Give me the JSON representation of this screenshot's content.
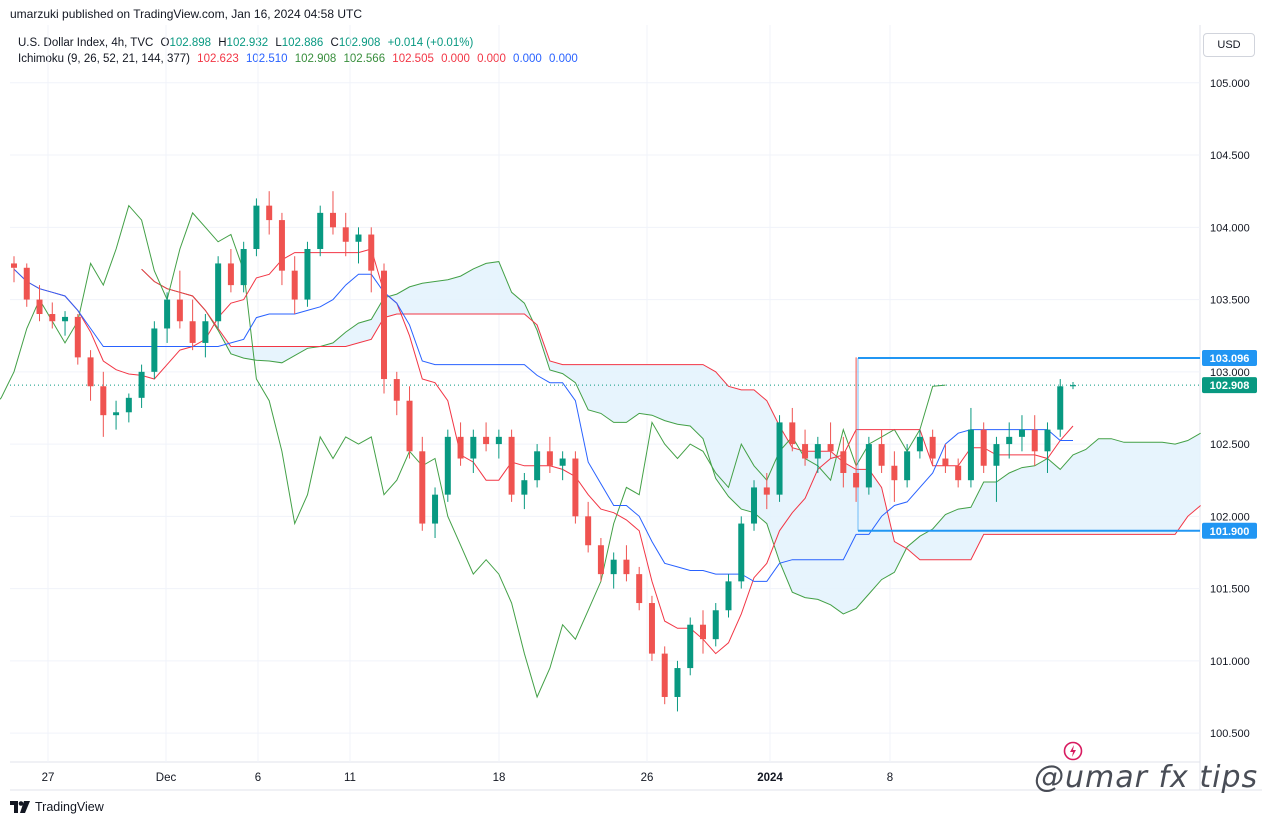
{
  "header": {
    "published": "umarzuki published on TradingView.com, Jan 16, 2024 04:58 UTC"
  },
  "legend": {
    "symbol": "U.S. Dollar Index, 4h, TVC",
    "o_label": "O",
    "o": "102.898",
    "h_label": "H",
    "h": "102.932",
    "l_label": "L",
    "l": "102.886",
    "c_label": "C",
    "c": "102.908",
    "change": "+0.014 (+0.01%)",
    "indicator": "Ichimoku (9, 26, 52, 21, 144, 377)",
    "ind_values": [
      "102.623",
      "102.510",
      "102.908",
      "102.566",
      "102.505",
      "0.000",
      "0.000",
      "0.000",
      "0.000"
    ]
  },
  "currency_button": "USD",
  "footer": {
    "brand": "TradingView"
  },
  "watermark": "@umar fx tips",
  "colors": {
    "up": "#089981",
    "down": "#ef5350",
    "tenkan": "#f23645",
    "kijun": "#2962ff",
    "chikou": "#43a047",
    "cloud": "#e3f2fd",
    "level": "#2196f3",
    "grid": "#f0f3fa"
  },
  "chart_data": {
    "type": "candlestick",
    "timeframe": "4h",
    "ylim": [
      100.3,
      105.4
    ],
    "y_ticks": [
      "105.000",
      "104.500",
      "104.000",
      "103.500",
      "103.000",
      "102.500",
      "102.000",
      "101.500",
      "101.000",
      "100.500"
    ],
    "x_ticks": [
      "27",
      "Dec",
      "6",
      "11",
      "18",
      "26",
      "2024",
      "8"
    ],
    "price_labels": [
      "103.096",
      "102.908",
      "101.900"
    ],
    "last_price": 102.908,
    "horizontal_levels": [
      103.096,
      101.9
    ],
    "candles": [
      [
        103.75,
        103.8,
        103.62,
        103.72
      ],
      [
        103.72,
        103.75,
        103.45,
        103.5
      ],
      [
        103.5,
        103.6,
        103.35,
        103.4
      ],
      [
        103.4,
        103.48,
        103.3,
        103.35
      ],
      [
        103.35,
        103.42,
        103.25,
        103.38
      ],
      [
        103.38,
        103.4,
        103.05,
        103.1
      ],
      [
        103.1,
        103.15,
        102.8,
        102.9
      ],
      [
        102.9,
        103.0,
        102.55,
        102.7
      ],
      [
        102.7,
        102.8,
        102.6,
        102.72
      ],
      [
        102.72,
        102.85,
        102.65,
        102.82
      ],
      [
        102.82,
        103.05,
        102.75,
        103.0
      ],
      [
        103.0,
        103.35,
        102.95,
        103.3
      ],
      [
        103.3,
        103.55,
        103.2,
        103.5
      ],
      [
        103.5,
        103.7,
        103.3,
        103.35
      ],
      [
        103.35,
        103.5,
        103.15,
        103.2
      ],
      [
        103.2,
        103.4,
        103.1,
        103.35
      ],
      [
        103.35,
        103.8,
        103.3,
        103.75
      ],
      [
        103.75,
        103.85,
        103.55,
        103.6
      ],
      [
        103.6,
        103.9,
        103.55,
        103.85
      ],
      [
        103.85,
        104.2,
        103.8,
        104.15
      ],
      [
        104.15,
        104.25,
        103.95,
        104.05
      ],
      [
        104.05,
        104.1,
        103.6,
        103.7
      ],
      [
        103.7,
        103.8,
        103.4,
        103.5
      ],
      [
        103.5,
        103.9,
        103.45,
        103.85
      ],
      [
        103.85,
        104.15,
        103.8,
        104.1
      ],
      [
        104.1,
        104.25,
        103.95,
        104.0
      ],
      [
        104.0,
        104.1,
        103.8,
        103.9
      ],
      [
        103.9,
        104.0,
        103.75,
        103.95
      ],
      [
        103.95,
        104.0,
        103.55,
        103.7
      ],
      [
        103.7,
        103.75,
        102.85,
        102.95
      ],
      [
        102.95,
        103.0,
        102.7,
        102.8
      ],
      [
        102.8,
        102.9,
        102.4,
        102.45
      ],
      [
        102.45,
        102.55,
        101.9,
        101.95
      ],
      [
        101.95,
        102.2,
        101.85,
        102.15
      ],
      [
        102.15,
        102.6,
        102.1,
        102.55
      ],
      [
        102.55,
        102.65,
        102.35,
        102.4
      ],
      [
        102.4,
        102.6,
        102.3,
        102.55
      ],
      [
        102.55,
        102.65,
        102.45,
        102.5
      ],
      [
        102.5,
        102.6,
        102.4,
        102.55
      ],
      [
        102.55,
        102.6,
        102.1,
        102.15
      ],
      [
        102.15,
        102.3,
        102.05,
        102.25
      ],
      [
        102.25,
        102.5,
        102.2,
        102.45
      ],
      [
        102.45,
        102.55,
        102.3,
        102.35
      ],
      [
        102.35,
        102.45,
        102.25,
        102.4
      ],
      [
        102.4,
        102.45,
        101.95,
        102.0
      ],
      [
        102.0,
        102.1,
        101.75,
        101.8
      ],
      [
        101.8,
        101.85,
        101.55,
        101.6
      ],
      [
        101.6,
        101.75,
        101.5,
        101.7
      ],
      [
        101.7,
        101.8,
        101.55,
        101.6
      ],
      [
        101.6,
        101.65,
        101.35,
        101.4
      ],
      [
        101.4,
        101.45,
        101.0,
        101.05
      ],
      [
        101.05,
        101.1,
        100.7,
        100.75
      ],
      [
        100.75,
        101.0,
        100.65,
        100.95
      ],
      [
        100.95,
        101.3,
        100.9,
        101.25
      ],
      [
        101.25,
        101.35,
        101.05,
        101.15
      ],
      [
        101.15,
        101.4,
        101.1,
        101.35
      ],
      [
        101.35,
        101.6,
        101.3,
        101.55
      ],
      [
        101.55,
        102.0,
        101.5,
        101.95
      ],
      [
        101.95,
        102.25,
        101.9,
        102.2
      ],
      [
        102.2,
        102.3,
        102.05,
        102.15
      ],
      [
        102.15,
        102.7,
        102.1,
        102.65
      ],
      [
        102.65,
        102.75,
        102.45,
        102.5
      ],
      [
        102.5,
        102.6,
        102.35,
        102.4
      ],
      [
        102.4,
        102.55,
        102.3,
        102.5
      ],
      [
        102.5,
        102.65,
        102.4,
        102.45
      ],
      [
        102.45,
        102.55,
        102.2,
        102.3
      ],
      [
        102.3,
        103.1,
        102.1,
        102.2
      ],
      [
        102.2,
        102.55,
        102.15,
        102.5
      ],
      [
        102.5,
        102.6,
        102.3,
        102.35
      ],
      [
        102.35,
        102.45,
        102.1,
        102.25
      ],
      [
        102.25,
        102.5,
        102.2,
        102.45
      ],
      [
        102.45,
        102.6,
        102.4,
        102.55
      ],
      [
        102.55,
        102.6,
        102.35,
        102.4
      ],
      [
        102.4,
        102.5,
        102.3,
        102.35
      ],
      [
        102.35,
        102.4,
        102.2,
        102.25
      ],
      [
        102.25,
        102.75,
        102.2,
        102.6
      ],
      [
        102.6,
        102.65,
        102.3,
        102.35
      ],
      [
        102.35,
        102.55,
        102.1,
        102.5
      ],
      [
        102.5,
        102.65,
        102.4,
        102.55
      ],
      [
        102.55,
        102.7,
        102.45,
        102.6
      ],
      [
        102.6,
        102.7,
        102.35,
        102.45
      ],
      [
        102.45,
        102.65,
        102.3,
        102.6
      ],
      [
        102.6,
        102.95,
        102.55,
        102.9
      ],
      [
        102.9,
        102.93,
        102.88,
        102.908
      ]
    ]
  }
}
